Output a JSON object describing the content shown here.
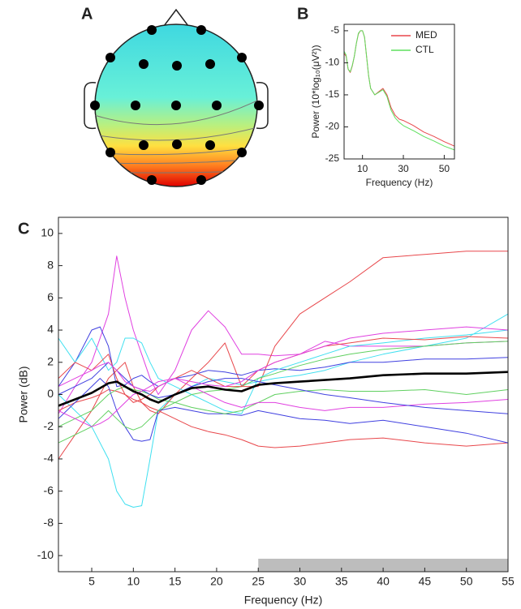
{
  "chart_data": [
    {
      "type": "topomap",
      "label": "A"
    },
    {
      "type": "line",
      "label": "B",
      "xlabel": "Frequency (Hz)",
      "ylabel": "Power (10*log₁₀(μV²))",
      "xlim": [
        1,
        55
      ],
      "ylim": [
        -25,
        -4
      ],
      "xticks": [
        10,
        30,
        50
      ],
      "yticks": [
        -5,
        -10,
        -15,
        -20,
        -25
      ],
      "legend": "upper right",
      "x": [
        1,
        2,
        3,
        4,
        5,
        6,
        7,
        8,
        9,
        10,
        11,
        12,
        13,
        14,
        15,
        16,
        18,
        20,
        22,
        24,
        26,
        28,
        30,
        35,
        40,
        45,
        50,
        55
      ],
      "series": [
        {
          "name": "MED",
          "color": "#e8474b",
          "values": [
            -8.5,
            -9,
            -11,
            -11.5,
            -10.5,
            -9,
            -7,
            -5.5,
            -5,
            -5,
            -6,
            -9,
            -12,
            -14,
            -14.5,
            -15,
            -14.5,
            -14,
            -15,
            -17,
            -18.2,
            -18.8,
            -19,
            -19.8,
            -20.8,
            -21.5,
            -22.3,
            -23
          ]
        },
        {
          "name": "CTL",
          "color": "#5ee05e",
          "values": [
            -8.2,
            -8.8,
            -11,
            -11.4,
            -10.4,
            -9,
            -7,
            -5.4,
            -5,
            -5,
            -6,
            -9,
            -12,
            -14,
            -14.5,
            -15,
            -14.6,
            -14.2,
            -15.3,
            -17.4,
            -18.6,
            -19.3,
            -19.8,
            -20.6,
            -21.5,
            -22.2,
            -23,
            -23.6
          ]
        }
      ]
    },
    {
      "type": "line",
      "label": "C",
      "xlabel": "Frequency (Hz)",
      "ylabel": "Power (dB)",
      "xlim": [
        1,
        55
      ],
      "ylim": [
        -11,
        11
      ],
      "xticks": [
        5,
        10,
        15,
        20,
        25,
        30,
        35,
        40,
        45,
        50,
        55
      ],
      "yticks": [
        -10,
        -8,
        -6,
        -4,
        -2,
        0,
        2,
        4,
        6,
        8,
        10
      ],
      "highlight": {
        "xrange": [
          25,
          55
        ],
        "color": "#bdbdbd"
      },
      "x": [
        1,
        3,
        5,
        6,
        7,
        8,
        9,
        10,
        11,
        12,
        13,
        15,
        17,
        19,
        21,
        23,
        25,
        27,
        30,
        33,
        36,
        40,
        45,
        50,
        55
      ],
      "series": [
        {
          "color": "#e040e0",
          "values": [
            -1.2,
            0.5,
            2,
            3.5,
            5,
            8.6,
            6,
            4,
            2.5,
            1,
            0,
            1.5,
            4,
            5.2,
            4.2,
            2.5,
            2.5,
            2.4,
            2.5,
            3.3,
            3,
            3,
            3,
            3.2,
            3.3
          ]
        },
        {
          "color": "#40e0f0",
          "values": [
            0,
            -1,
            -2,
            -3,
            -4,
            -6,
            -6.8,
            -7,
            -6.9,
            -4,
            -1,
            0,
            0.5,
            1,
            0.8,
            0.6,
            0.8,
            1,
            1.2,
            1.5,
            2,
            2.5,
            3,
            3.5,
            5
          ]
        },
        {
          "color": "#e8474b",
          "values": [
            -4,
            -2.5,
            -1,
            0,
            1,
            1.5,
            2,
            0.5,
            -0.5,
            -1,
            -1.2,
            0,
            1,
            2,
            3.2,
            0.5,
            0.5,
            3,
            5,
            6,
            7,
            8.5,
            8.7,
            8.9,
            8.9
          ]
        },
        {
          "color": "#e8474b",
          "values": [
            -1,
            -0.5,
            -0.2,
            0,
            0.3,
            0.2,
            0,
            -0.3,
            -0.5,
            -0.8,
            -1,
            -1.5,
            -2,
            -2.3,
            -2.5,
            -2.8,
            -3.2,
            -3.3,
            -3.2,
            -3,
            -2.8,
            -2.7,
            -3,
            -3.2,
            -3
          ]
        },
        {
          "color": "#4040e0",
          "values": [
            -1.5,
            -0.5,
            0.5,
            1,
            0.5,
            -1,
            -2,
            -2.8,
            -2.9,
            -2.8,
            -1,
            -0.8,
            -1,
            -1.2,
            -1.2,
            -1.3,
            -1,
            -1.2,
            -1.5,
            -1.6,
            -1.8,
            -1.6,
            -2,
            -2.4,
            -3
          ]
        },
        {
          "color": "#4040e0",
          "values": [
            0.5,
            2,
            4,
            4.2,
            3,
            0.5,
            0.6,
            1,
            1.2,
            0.8,
            0.5,
            1,
            1.2,
            1.5,
            1.4,
            1.2,
            1.5,
            1.6,
            1.5,
            1.7,
            2,
            2,
            2.2,
            2.2,
            2.3
          ]
        },
        {
          "color": "#40e0f0",
          "values": [
            3.5,
            2,
            3.5,
            2.5,
            1.5,
            2,
            3.5,
            3.5,
            3.2,
            2,
            1,
            0.5,
            0,
            -0.5,
            -1,
            -1.2,
            1,
            1.5,
            2,
            2.5,
            3,
            3.2,
            3.5,
            3.7,
            4
          ]
        },
        {
          "color": "#60d060",
          "values": [
            -2,
            -1.5,
            -1,
            -0.5,
            0,
            0.3,
            0.5,
            0.3,
            0.2,
            0,
            -0.3,
            -0.5,
            -0.8,
            -1,
            -1.2,
            -1,
            -0.5,
            0,
            0.2,
            0.3,
            0.2,
            0.2,
            0.3,
            0,
            0.3
          ]
        },
        {
          "color": "#60d060",
          "values": [
            -3,
            -2.5,
            -2,
            -1.5,
            -1,
            -1.5,
            -2,
            -2.2,
            -2,
            -1.5,
            -1,
            -0.5,
            0,
            0.2,
            0.3,
            0.5,
            1,
            1.3,
            1.8,
            2.2,
            2.5,
            2.8,
            3,
            3.2,
            3.3
          ]
        },
        {
          "color": "#e040e0",
          "values": [
            -1,
            -1.5,
            -2,
            -1.8,
            -1.5,
            -1,
            -0.5,
            0,
            0.2,
            0.5,
            0.8,
            1,
            0.5,
            0,
            -0.5,
            -0.8,
            -0.5,
            -0.5,
            -0.8,
            -1,
            -0.8,
            -0.8,
            -0.6,
            -0.5,
            -0.3
          ]
        },
        {
          "color": "#e8474b",
          "values": [
            1,
            2,
            1.5,
            2,
            2.5,
            1,
            0,
            -0.5,
            -0.3,
            0,
            0.5,
            1,
            1.5,
            1,
            0.5,
            0.5,
            1.5,
            2,
            2.5,
            3,
            3.2,
            3.5,
            3.4,
            3.6,
            3.5
          ]
        },
        {
          "color": "#4040e0",
          "values": [
            0,
            0.5,
            1,
            1.5,
            2,
            1.5,
            1,
            0.5,
            0.3,
            0,
            -0.2,
            0,
            0.5,
            0.8,
            1,
            1,
            0.8,
            0.6,
            0.3,
            0,
            -0.2,
            -0.5,
            -0.8,
            -1,
            -1.2
          ]
        },
        {
          "color": "#e040e0",
          "values": [
            0.5,
            1,
            1.5,
            1.8,
            2,
            1.5,
            0.8,
            0.5,
            0.3,
            0.2,
            0.5,
            1,
            0.8,
            0.6,
            0.5,
            0.8,
            1.5,
            2,
            2.5,
            3,
            3.5,
            3.8,
            4,
            4.2,
            4
          ]
        },
        {
          "color": "#000000",
          "values": [
            -0.7,
            -0.3,
            0.1,
            0.4,
            0.7,
            0.8,
            0.5,
            0.2,
            0,
            -0.3,
            -0.5,
            0,
            0.4,
            0.5,
            0.3,
            0.2,
            0.6,
            0.7,
            0.8,
            0.9,
            1,
            1.2,
            1.3,
            1.3,
            1.4
          ]
        }
      ]
    }
  ]
}
